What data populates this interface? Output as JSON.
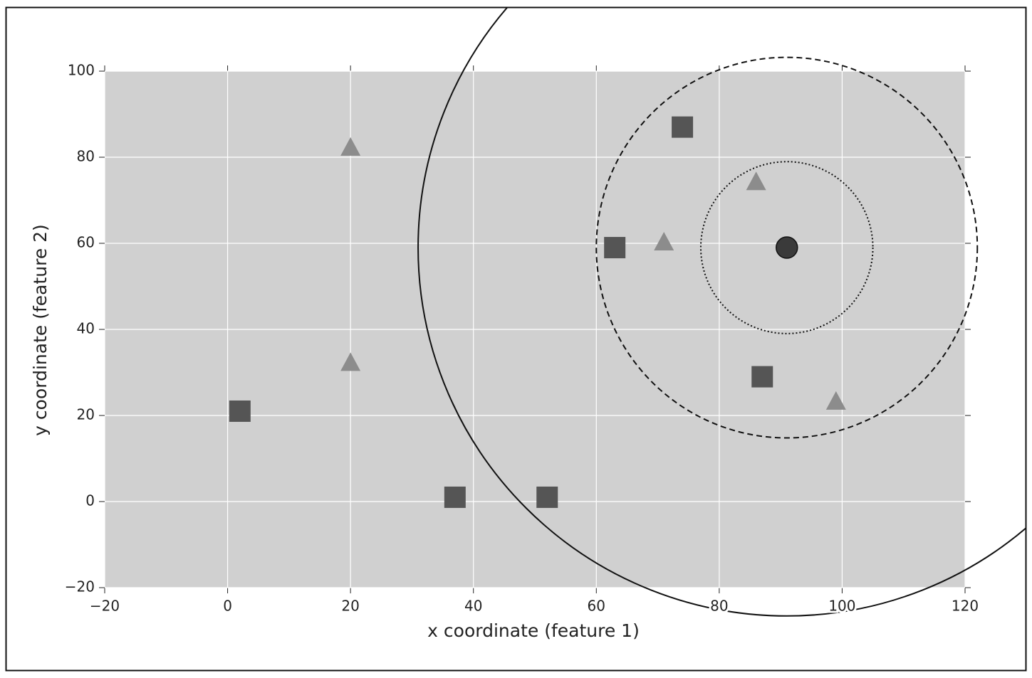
{
  "chart_data": {
    "type": "scatter",
    "xlabel": "x coordinate (feature 1)",
    "ylabel": "y coordinate (feature 2)",
    "xlim": [
      -20,
      120
    ],
    "ylim": [
      -20,
      100
    ],
    "xticks": [
      {
        "value": -20,
        "label": "−20"
      },
      0,
      20,
      40,
      60,
      80,
      100,
      120
    ],
    "yticks": [
      {
        "value": -20,
        "label": "−20"
      },
      0,
      20,
      40,
      60,
      80,
      100
    ],
    "grid": true,
    "background": "#d0d0d0",
    "series": [
      {
        "marker": "square",
        "color": "#555555",
        "x": [
          2,
          37,
          52,
          63,
          74,
          87
        ],
        "y": [
          21,
          1,
          1,
          59,
          87,
          29
        ]
      },
      {
        "marker": "triangle",
        "color": "#8c8c8c",
        "x": [
          20,
          20,
          71,
          86,
          99
        ],
        "y": [
          82,
          32,
          60,
          74,
          23
        ]
      },
      {
        "marker": "circle",
        "color": "#3a3a3a",
        "x": [
          91
        ],
        "y": [
          59
        ]
      }
    ],
    "circles": [
      {
        "x": 91,
        "y": 59,
        "radius": 14,
        "style": "dotted"
      },
      {
        "x": 91,
        "y": 59,
        "radius": 31,
        "style": "dashed"
      },
      {
        "x": 91,
        "y": 59,
        "radius": 60,
        "style": "solid"
      }
    ]
  }
}
